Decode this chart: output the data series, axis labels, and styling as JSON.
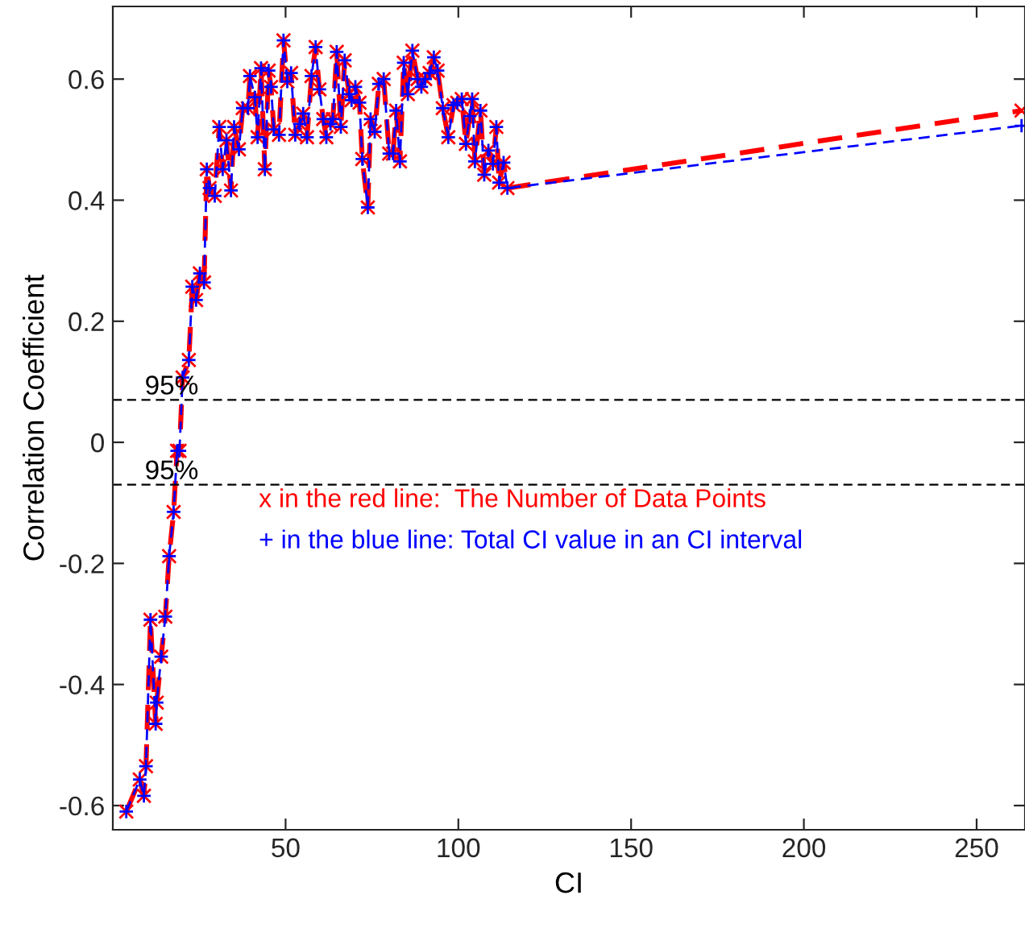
{
  "chart_data": {
    "type": "line",
    "xlabel": "CI",
    "ylabel": "Correlation Coefficient",
    "xlim": [
      0,
      264
    ],
    "ylim": [
      -0.64,
      0.72
    ],
    "xticks": [
      50,
      100,
      150,
      200,
      250
    ],
    "yticks": [
      -0.6,
      -0.4,
      -0.2,
      0,
      0.2,
      0.4,
      0.6
    ],
    "grid": false,
    "line_style": "dashed",
    "x": [
      3.9,
      7.8,
      9,
      9.6,
      10.9,
      12.4,
      12.7,
      14,
      15.2,
      16.3,
      17.6,
      18.6,
      19.3,
      20.2,
      22,
      23,
      24.1,
      25.2,
      26.4,
      27.2,
      28,
      29.5,
      30.8,
      31.8,
      32.9,
      34.2,
      35.1,
      36.5,
      37.6,
      39.1,
      39.7,
      41.1,
      41.9,
      42.9,
      44,
      45.1,
      45.8,
      46.6,
      48.1,
      49.4,
      50.5,
      51.6,
      52.8,
      54.1,
      55.1,
      56.2,
      57.5,
      58.7,
      59.8,
      60.9,
      61.8,
      63,
      63.7,
      64.8,
      66,
      67.1,
      68.4,
      69.1,
      70.2,
      71.4,
      72.2,
      73.8,
      74.6,
      75.8,
      77,
      78.4,
      80,
      81.1,
      82,
      83.1,
      84.2,
      85.4,
      86.7,
      88.2,
      89.3,
      90.4,
      91.7,
      92.9,
      94,
      95.5,
      97.1,
      98.6,
      99.7,
      101,
      102.2,
      103.3,
      104,
      104.8,
      106.4,
      107.5,
      108.7,
      110,
      111,
      111.8,
      113.1,
      114.2,
      263
    ],
    "series": [
      {
        "name": "x in the red line:  The Number of Data Points",
        "color": "#ff0000",
        "marker": "cross",
        "values": [
          -0.61,
          -0.557,
          -0.584,
          -0.535,
          -0.293,
          -0.465,
          -0.43,
          -0.354,
          -0.288,
          -0.188,
          -0.115,
          -0.014,
          -0.014,
          0.107,
          0.136,
          0.257,
          0.235,
          0.279,
          0.264,
          0.451,
          0.42,
          0.407,
          0.521,
          0.451,
          0.499,
          0.416,
          0.521,
          0.484,
          0.552,
          0.552,
          0.605,
          0.57,
          0.504,
          0.618,
          0.451,
          0.614,
          0.587,
          0.517,
          0.508,
          0.664,
          0.596,
          0.61,
          0.508,
          0.526,
          0.543,
          0.504,
          0.605,
          0.653,
          0.583,
          0.534,
          0.504,
          0.526,
          0.534,
          0.645,
          0.521,
          0.631,
          0.575,
          0.565,
          0.587,
          0.561,
          0.468,
          0.388,
          0.534,
          0.513,
          0.592,
          0.6,
          0.477,
          0.477,
          0.548,
          0.464,
          0.627,
          0.575,
          0.647,
          0.6,
          0.587,
          0.6,
          0.61,
          0.636,
          0.614,
          0.552,
          0.504,
          0.557,
          0.561,
          0.567,
          0.493,
          0.539,
          0.567,
          0.464,
          0.548,
          0.442,
          0.482,
          0.46,
          0.521,
          0.429,
          0.462,
          0.42,
          0.548
        ]
      },
      {
        "name": "+ in the blue line: Total CI value in an CI interval",
        "color": "#0000ff",
        "marker": "plus",
        "values": [
          -0.61,
          -0.557,
          -0.584,
          -0.535,
          -0.293,
          -0.465,
          -0.43,
          -0.354,
          -0.288,
          -0.188,
          -0.115,
          -0.014,
          -0.014,
          0.107,
          0.136,
          0.257,
          0.235,
          0.279,
          0.264,
          0.451,
          0.42,
          0.407,
          0.521,
          0.451,
          0.499,
          0.416,
          0.521,
          0.484,
          0.552,
          0.552,
          0.605,
          0.57,
          0.504,
          0.618,
          0.451,
          0.614,
          0.587,
          0.517,
          0.508,
          0.664,
          0.596,
          0.61,
          0.508,
          0.526,
          0.543,
          0.504,
          0.605,
          0.653,
          0.583,
          0.534,
          0.504,
          0.526,
          0.534,
          0.645,
          0.521,
          0.631,
          0.575,
          0.565,
          0.587,
          0.561,
          0.468,
          0.388,
          0.534,
          0.513,
          0.592,
          0.6,
          0.477,
          0.477,
          0.548,
          0.464,
          0.627,
          0.575,
          0.647,
          0.6,
          0.587,
          0.6,
          0.61,
          0.636,
          0.614,
          0.552,
          0.504,
          0.557,
          0.561,
          0.567,
          0.493,
          0.539,
          0.567,
          0.464,
          0.548,
          0.442,
          0.482,
          0.46,
          0.521,
          0.429,
          0.462,
          0.42,
          0.523
        ]
      }
    ],
    "ref_lines": [
      {
        "axis": "y",
        "value": 0.07,
        "color": "#000000",
        "line_style": "dashed"
      },
      {
        "axis": "y",
        "value": -0.07,
        "color": "#000000",
        "line_style": "dashed"
      }
    ],
    "annotations": [
      "95%",
      "95%"
    ]
  }
}
